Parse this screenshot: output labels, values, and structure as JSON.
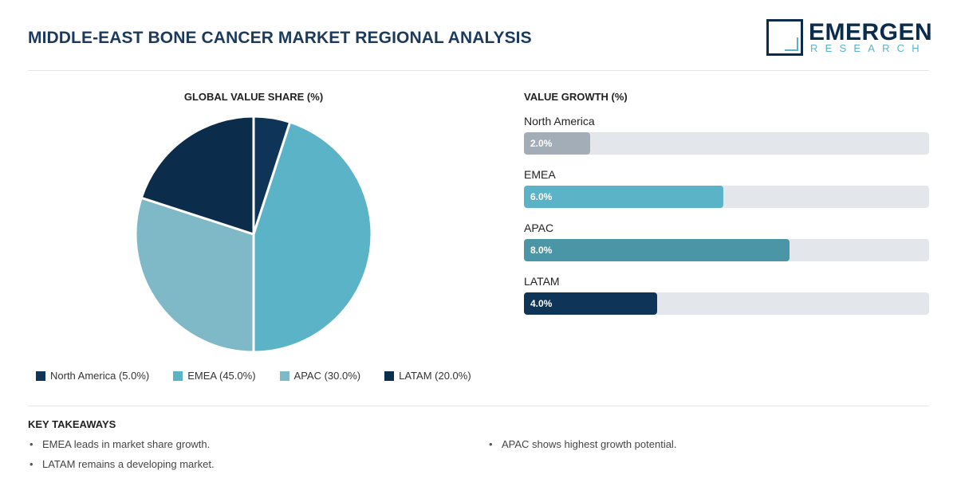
{
  "header": {
    "title": "MIDDLE-EAST BONE CANCER MARKET REGIONAL ANALYSIS",
    "logo_word": "EMERGEN",
    "logo_sub": "RESEARCH"
  },
  "colors": {
    "title": "#1b3a5c",
    "north_america": "#0e3558",
    "emea": "#5ab3c7",
    "apac": "#7fb8c6",
    "latam": "#0b2c4a",
    "growth_na": "#a3adb7",
    "growth_emea": "#5ab3c7",
    "growth_apac": "#4a96a6",
    "growth_latam": "#0e3558"
  },
  "chart_data": [
    {
      "type": "pie",
      "title": "GLOBAL VALUE SHARE (%)",
      "categories": [
        "North America",
        "EMEA",
        "APAC",
        "LATAM"
      ],
      "values": [
        5.0,
        45.0,
        30.0,
        20.0
      ],
      "legend": [
        "North America (5.0%)",
        "EMEA (45.0%)",
        "APAC (30.0%)",
        "LATAM (20.0%)"
      ],
      "legend_position": "bottom"
    },
    {
      "type": "bar",
      "orientation": "horizontal",
      "title": "VALUE GROWTH (%)",
      "categories": [
        "North America",
        "EMEA",
        "APAC",
        "LATAM"
      ],
      "values": [
        2.0,
        6.0,
        8.0,
        4.0
      ],
      "labels": [
        "2.0%",
        "6.0%",
        "8.0%",
        "4.0%"
      ],
      "xlim": [
        0,
        12.2
      ]
    }
  ],
  "takeaways": {
    "title": "KEY TAKEAWAYS",
    "items": [
      "EMEA leads in market share growth.",
      "APAC shows highest growth potential.",
      "LATAM remains a developing market."
    ]
  }
}
